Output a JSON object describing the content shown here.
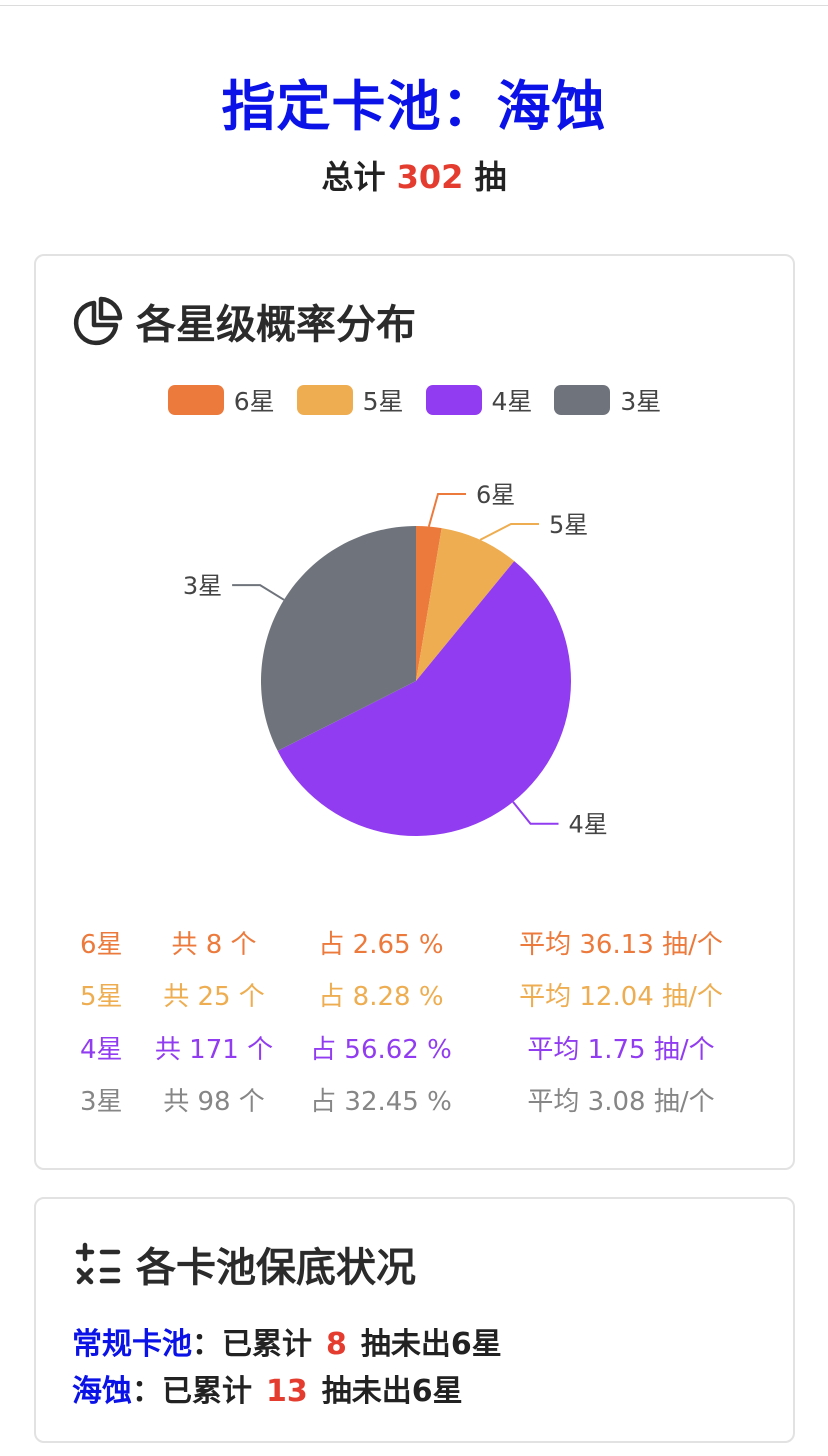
{
  "header": {
    "title": "指定卡池：海蚀",
    "total_prefix": "总计",
    "total_count": "302",
    "total_suffix": "抽"
  },
  "distribution": {
    "title": "各星级概率分布",
    "icon": "pie-chart-icon",
    "legend": [
      {
        "label": "6星",
        "color": "#ec7a3c"
      },
      {
        "label": "5星",
        "color": "#edad50"
      },
      {
        "label": "4星",
        "color": "#913cf0"
      },
      {
        "label": "3星",
        "color": "#6f747c"
      }
    ],
    "rows": [
      {
        "name": "6星",
        "count": "共 8 个",
        "pct": "占 2.65 %",
        "avg": "平均 36.13 抽/个",
        "color": "#ec7a3c"
      },
      {
        "name": "5星",
        "count": "共 25 个",
        "pct": "占 8.28 %",
        "avg": "平均 12.04 抽/个",
        "color": "#edad50"
      },
      {
        "name": "4星",
        "count": "共 171 个",
        "pct": "占 56.62 %",
        "avg": "平均 1.75 抽/个",
        "color": "#913cf0"
      },
      {
        "name": "3星",
        "count": "共 98 个",
        "pct": "占 32.45 %",
        "avg": "平均 3.08 抽/个",
        "color": "#868686"
      }
    ]
  },
  "chart_data": {
    "type": "pie",
    "categories": [
      "6星",
      "5星",
      "4星",
      "3星"
    ],
    "values": [
      8,
      25,
      171,
      98
    ],
    "colors": [
      "#ec7a3c",
      "#edad50",
      "#913cf0",
      "#6f747c"
    ],
    "legend": "top"
  },
  "pity": {
    "title": "各卡池保底状况",
    "icon": "calculator-icon",
    "rows": [
      {
        "pool": "常规卡池",
        "sep": "：",
        "prefix": "已累计",
        "count": "8",
        "suffix": "抽未出6星"
      },
      {
        "pool": "海蚀",
        "sep": "：",
        "prefix": "已累计",
        "count": "13",
        "suffix": "抽未出6星"
      }
    ]
  }
}
